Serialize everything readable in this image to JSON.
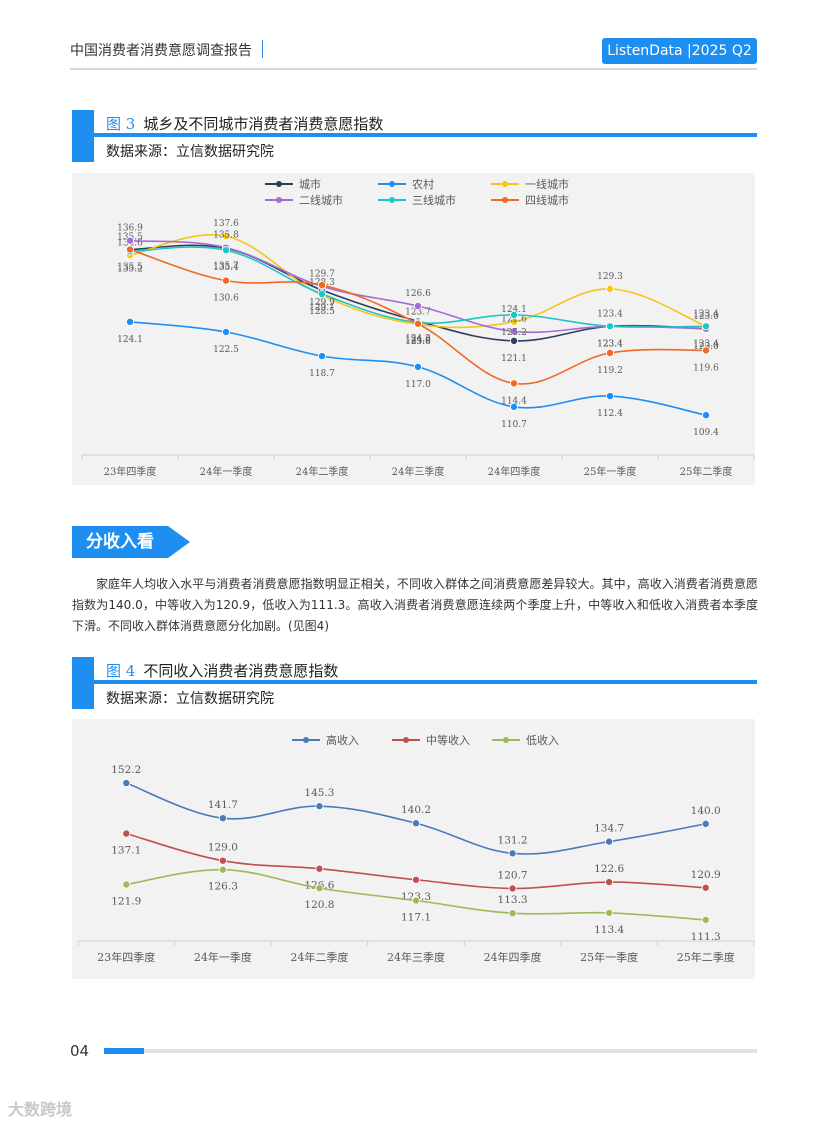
{
  "header": {
    "title": "中国消费者消费意愿调查报告",
    "brand": "ListenData |2025 Q2"
  },
  "figure3": {
    "num": "图 3",
    "title": "城乡及不同城市消费者消费意愿指数",
    "source": "数据来源：立信数据研究院"
  },
  "section": {
    "tag": "分收入看",
    "paragraph": "家庭年人均收入水平与消费者消费意愿指数明显正相关，不同收入群体之间消费意愿差异较大。其中，高收入消费者消费意愿指数为140.0，中等收入为120.9，低收入为111.3。高收入消费者消费意愿连续两个季度上升，中等收入和低收入消费者本季度下滑。不同收入群体消费意愿分化加剧。(见图4)"
  },
  "figure4": {
    "num": "图 4",
    "title": "不同收入消费者消费意愿指数",
    "source": "数据来源：立信数据研究院"
  },
  "footer": {
    "page": "04",
    "watermark": "大数跨境"
  },
  "chart_data": [
    {
      "type": "line",
      "categories": [
        "23年四季度",
        "24年一季度",
        "24年二季度",
        "24年三季度",
        "24年四季度",
        "25年一季度",
        "25年二季度"
      ],
      "ylim": [
        105,
        140
      ],
      "series": [
        {
          "name": "城市",
          "color": "#2e3f5c",
          "values": [
            135.5,
            135.7,
            129.1,
            124.2,
            121.1,
            123.4,
            123.0
          ]
        },
        {
          "name": "农村",
          "color": "#1f8ef1",
          "values": [
            124.1,
            122.5,
            118.7,
            117.0,
            110.7,
            112.4,
            109.4
          ]
        },
        {
          "name": "一线城市",
          "color": "#f5c518",
          "values": [
            134.6,
            137.6,
            128.3,
            123.7,
            124.1,
            129.3,
            123.4
          ]
        },
        {
          "name": "二线城市",
          "color": "#a56bd6",
          "values": [
            136.9,
            135.8,
            129.7,
            126.6,
            122.6,
            123.4,
            123.0
          ]
        },
        {
          "name": "三线城市",
          "color": "#1cc6c6",
          "values": [
            135.2,
            135.4,
            128.5,
            124.0,
            125.2,
            123.4,
            123.4
          ]
        },
        {
          "name": "四线城市",
          "color": "#f06a26",
          "values": [
            135.5,
            130.6,
            129.9,
            123.8,
            114.4,
            119.2,
            119.6
          ]
        }
      ],
      "data_labels": [
        "136.9",
        "137.6",
        "135.5",
        "135.4",
        "135.2",
        "135.7",
        "135.8",
        "134.6",
        "135.4",
        "130.6",
        "129.9",
        "129.7",
        "129.1",
        "128.3",
        "128.5",
        "126.6",
        "126.9",
        "124.2",
        "123.7",
        "123.8",
        "125.2",
        "124.1",
        "122.6",
        "121.1",
        "129.3",
        "123.4",
        "122.8",
        "123.6",
        "123.4",
        "123.0",
        "122.2",
        "124.1",
        "122.5",
        "118.7",
        "117.0",
        "114.4",
        "110.7",
        "119.2",
        "112.4",
        "119.6",
        "109.4"
      ]
    },
    {
      "type": "line",
      "categories": [
        "23年四季度",
        "24年一季度",
        "24年二季度",
        "24年三季度",
        "24年四季度",
        "25年一季度",
        "25年二季度"
      ],
      "ylim": [
        105,
        157
      ],
      "series": [
        {
          "name": "高收入",
          "color": "#4a7ab8",
          "values": [
            152.2,
            141.7,
            145.3,
            140.2,
            131.2,
            134.7,
            140.0
          ]
        },
        {
          "name": "中等收入",
          "color": "#c0504d",
          "values": [
            137.1,
            129.0,
            126.6,
            123.3,
            120.7,
            122.6,
            120.9
          ]
        },
        {
          "name": "低收入",
          "color": "#9bbb59",
          "values": [
            121.9,
            126.3,
            120.8,
            117.1,
            113.3,
            113.4,
            111.3
          ]
        }
      ]
    }
  ]
}
